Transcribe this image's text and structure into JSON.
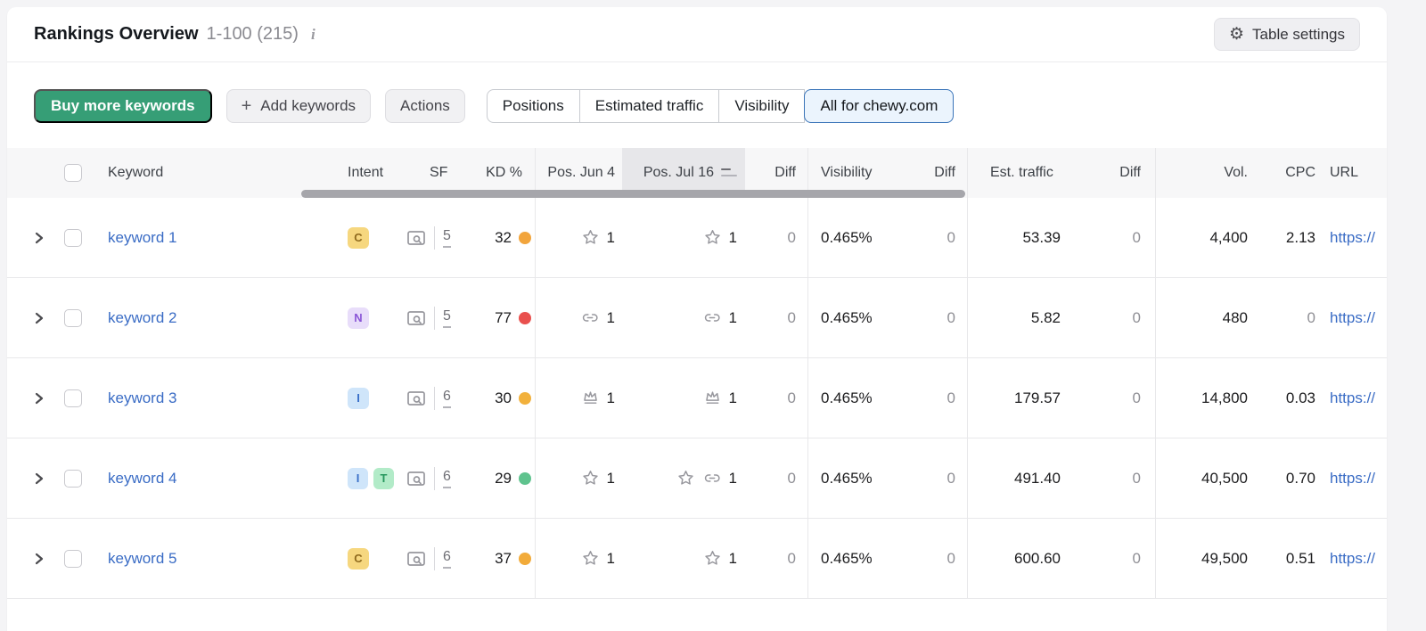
{
  "header": {
    "title": "Rankings Overview",
    "range": "1-100 (215)",
    "info_icon": "i",
    "settings_label": "Table settings"
  },
  "toolbar": {
    "buy_label": "Buy more keywords",
    "add_icon": "+",
    "add_label": "Add keywords",
    "actions_label": "Actions",
    "tabs": [
      {
        "label": "Positions",
        "selected": false
      },
      {
        "label": "Estimated traffic",
        "selected": false
      },
      {
        "label": "Visibility",
        "selected": false
      },
      {
        "label": "All for chewy.com",
        "selected": true
      }
    ]
  },
  "table": {
    "columns": {
      "keyword": "Keyword",
      "intent": "Intent",
      "sf": "SF",
      "kd": "KD %",
      "pos_jun": "Pos. Jun 4",
      "pos_jul": "Pos. Jul 16",
      "diff": "Diff",
      "visibility": "Visibility",
      "est_traffic": "Est. traffic",
      "vol": "Vol.",
      "cpc": "CPC",
      "url": "URL"
    },
    "sorted_column": "pos_jul",
    "intent_styles": {
      "C": {
        "bg": "#f6d77f",
        "fg": "#8f6a1e"
      },
      "N": {
        "bg": "#e8ddfa",
        "fg": "#8a55d7"
      },
      "I": {
        "bg": "#cfe5fa",
        "fg": "#3a70c8"
      },
      "T": {
        "bg": "#b2ebc8",
        "fg": "#27985e"
      }
    },
    "rows": [
      {
        "keyword": "keyword 1",
        "intents": [
          "C"
        ],
        "sf_count": "5",
        "kd": "32",
        "kd_color": "#f2a53c",
        "jun_icons": [
          "star"
        ],
        "jun_value": "1",
        "jul_icons": [
          "star"
        ],
        "jul_value": "1",
        "diff_pos": "0",
        "visibility": "0.465%",
        "diff_vis": "0",
        "est_traffic": "53.39",
        "diff_traffic": "0",
        "volume": "4,400",
        "cpc": "2.13",
        "url": "https://"
      },
      {
        "keyword": "keyword 2",
        "intents": [
          "N"
        ],
        "sf_count": "5",
        "kd": "77",
        "kd_color": "#e9504e",
        "jun_icons": [
          "link"
        ],
        "jun_value": "1",
        "jul_icons": [
          "link"
        ],
        "jul_value": "1",
        "diff_pos": "0",
        "visibility": "0.465%",
        "diff_vis": "0",
        "est_traffic": "5.82",
        "diff_traffic": "0",
        "volume": "480",
        "cpc": "0",
        "url": "https://"
      },
      {
        "keyword": "keyword 3",
        "intents": [
          "I"
        ],
        "sf_count": "6",
        "kd": "30",
        "kd_color": "#f2b13c",
        "jun_icons": [
          "crown"
        ],
        "jun_value": "1",
        "jul_icons": [
          "crown"
        ],
        "jul_value": "1",
        "diff_pos": "0",
        "visibility": "0.465%",
        "diff_vis": "0",
        "est_traffic": "179.57",
        "diff_traffic": "0",
        "volume": "14,800",
        "cpc": "0.03",
        "url": "https://"
      },
      {
        "keyword": "keyword 4",
        "intents": [
          "I",
          "T"
        ],
        "sf_count": "6",
        "kd": "29",
        "kd_color": "#5fc38e",
        "jun_icons": [
          "star"
        ],
        "jun_value": "1",
        "jul_icons": [
          "star",
          "link"
        ],
        "jul_value": "1",
        "diff_pos": "0",
        "visibility": "0.465%",
        "diff_vis": "0",
        "est_traffic": "491.40",
        "diff_traffic": "0",
        "volume": "40,500",
        "cpc": "0.70",
        "url": "https://"
      },
      {
        "keyword": "keyword 5",
        "intents": [
          "C"
        ],
        "sf_count": "6",
        "kd": "37",
        "kd_color": "#f2ab3a",
        "jun_icons": [
          "star"
        ],
        "jun_value": "1",
        "jul_icons": [
          "star"
        ],
        "jul_value": "1",
        "diff_pos": "0",
        "visibility": "0.465%",
        "diff_vis": "0",
        "est_traffic": "600.60",
        "diff_traffic": "0",
        "volume": "49,500",
        "cpc": "0.51",
        "url": "https://"
      }
    ]
  }
}
